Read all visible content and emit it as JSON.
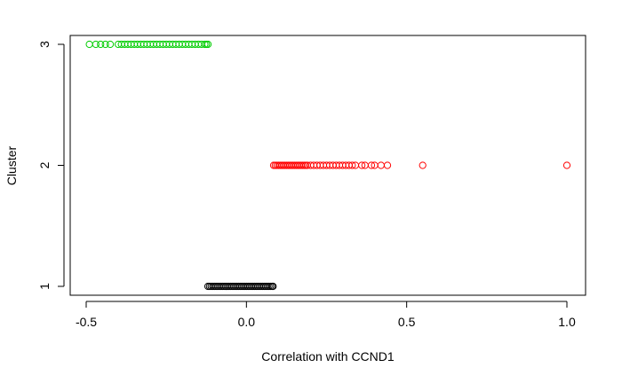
{
  "chart_data": {
    "type": "scatter",
    "title": "",
    "xlabel": "Correlation with CCND1",
    "ylabel": "Cluster",
    "xlim": [
      -0.5,
      1.0
    ],
    "ylim": [
      1,
      3
    ],
    "x_ticks": [
      {
        "value": -0.5,
        "label": "-0.5"
      },
      {
        "value": 0.0,
        "label": "0.0"
      },
      {
        "value": 0.5,
        "label": "0.5"
      },
      {
        "value": 1.0,
        "label": "1.0"
      }
    ],
    "y_ticks": [
      {
        "value": 1,
        "label": "1"
      },
      {
        "value": 2,
        "label": "2"
      },
      {
        "value": 3,
        "label": "3"
      }
    ],
    "grid": false,
    "legend": "none",
    "marker": "open-circle",
    "series": [
      {
        "cluster": 1,
        "color": "#000000",
        "y": 1,
        "x": [
          -0.12,
          -0.115,
          -0.11,
          -0.105,
          -0.1,
          -0.095,
          -0.09,
          -0.085,
          -0.08,
          -0.075,
          -0.07,
          -0.065,
          -0.06,
          -0.055,
          -0.05,
          -0.045,
          -0.04,
          -0.035,
          -0.03,
          -0.025,
          -0.02,
          -0.015,
          -0.01,
          -0.005,
          0.0,
          0.005,
          0.01,
          0.015,
          0.02,
          0.025,
          0.03,
          0.035,
          0.04,
          0.045,
          0.05,
          0.055,
          0.06,
          0.065,
          0.07,
          0.075,
          0.08,
          0.083
        ]
      },
      {
        "cluster": 2,
        "color": "#ff0000",
        "y": 2,
        "x": [
          0.085,
          0.09,
          0.095,
          0.1,
          0.105,
          0.11,
          0.115,
          0.12,
          0.125,
          0.13,
          0.135,
          0.14,
          0.145,
          0.15,
          0.155,
          0.16,
          0.165,
          0.17,
          0.175,
          0.18,
          0.185,
          0.19,
          0.2,
          0.21,
          0.22,
          0.23,
          0.24,
          0.25,
          0.26,
          0.27,
          0.28,
          0.29,
          0.3,
          0.31,
          0.32,
          0.33,
          0.34,
          0.36,
          0.37,
          0.39,
          0.4,
          0.42,
          0.44,
          0.55,
          1.0
        ]
      },
      {
        "cluster": 3,
        "color": "#00cd00",
        "y": 3,
        "x": [
          -0.49,
          -0.47,
          -0.455,
          -0.44,
          -0.425,
          -0.4,
          -0.39,
          -0.38,
          -0.37,
          -0.36,
          -0.35,
          -0.34,
          -0.33,
          -0.32,
          -0.31,
          -0.3,
          -0.29,
          -0.28,
          -0.27,
          -0.26,
          -0.25,
          -0.24,
          -0.23,
          -0.22,
          -0.21,
          -0.2,
          -0.19,
          -0.18,
          -0.17,
          -0.16,
          -0.15,
          -0.14,
          -0.13,
          -0.125,
          -0.12
        ]
      }
    ]
  }
}
